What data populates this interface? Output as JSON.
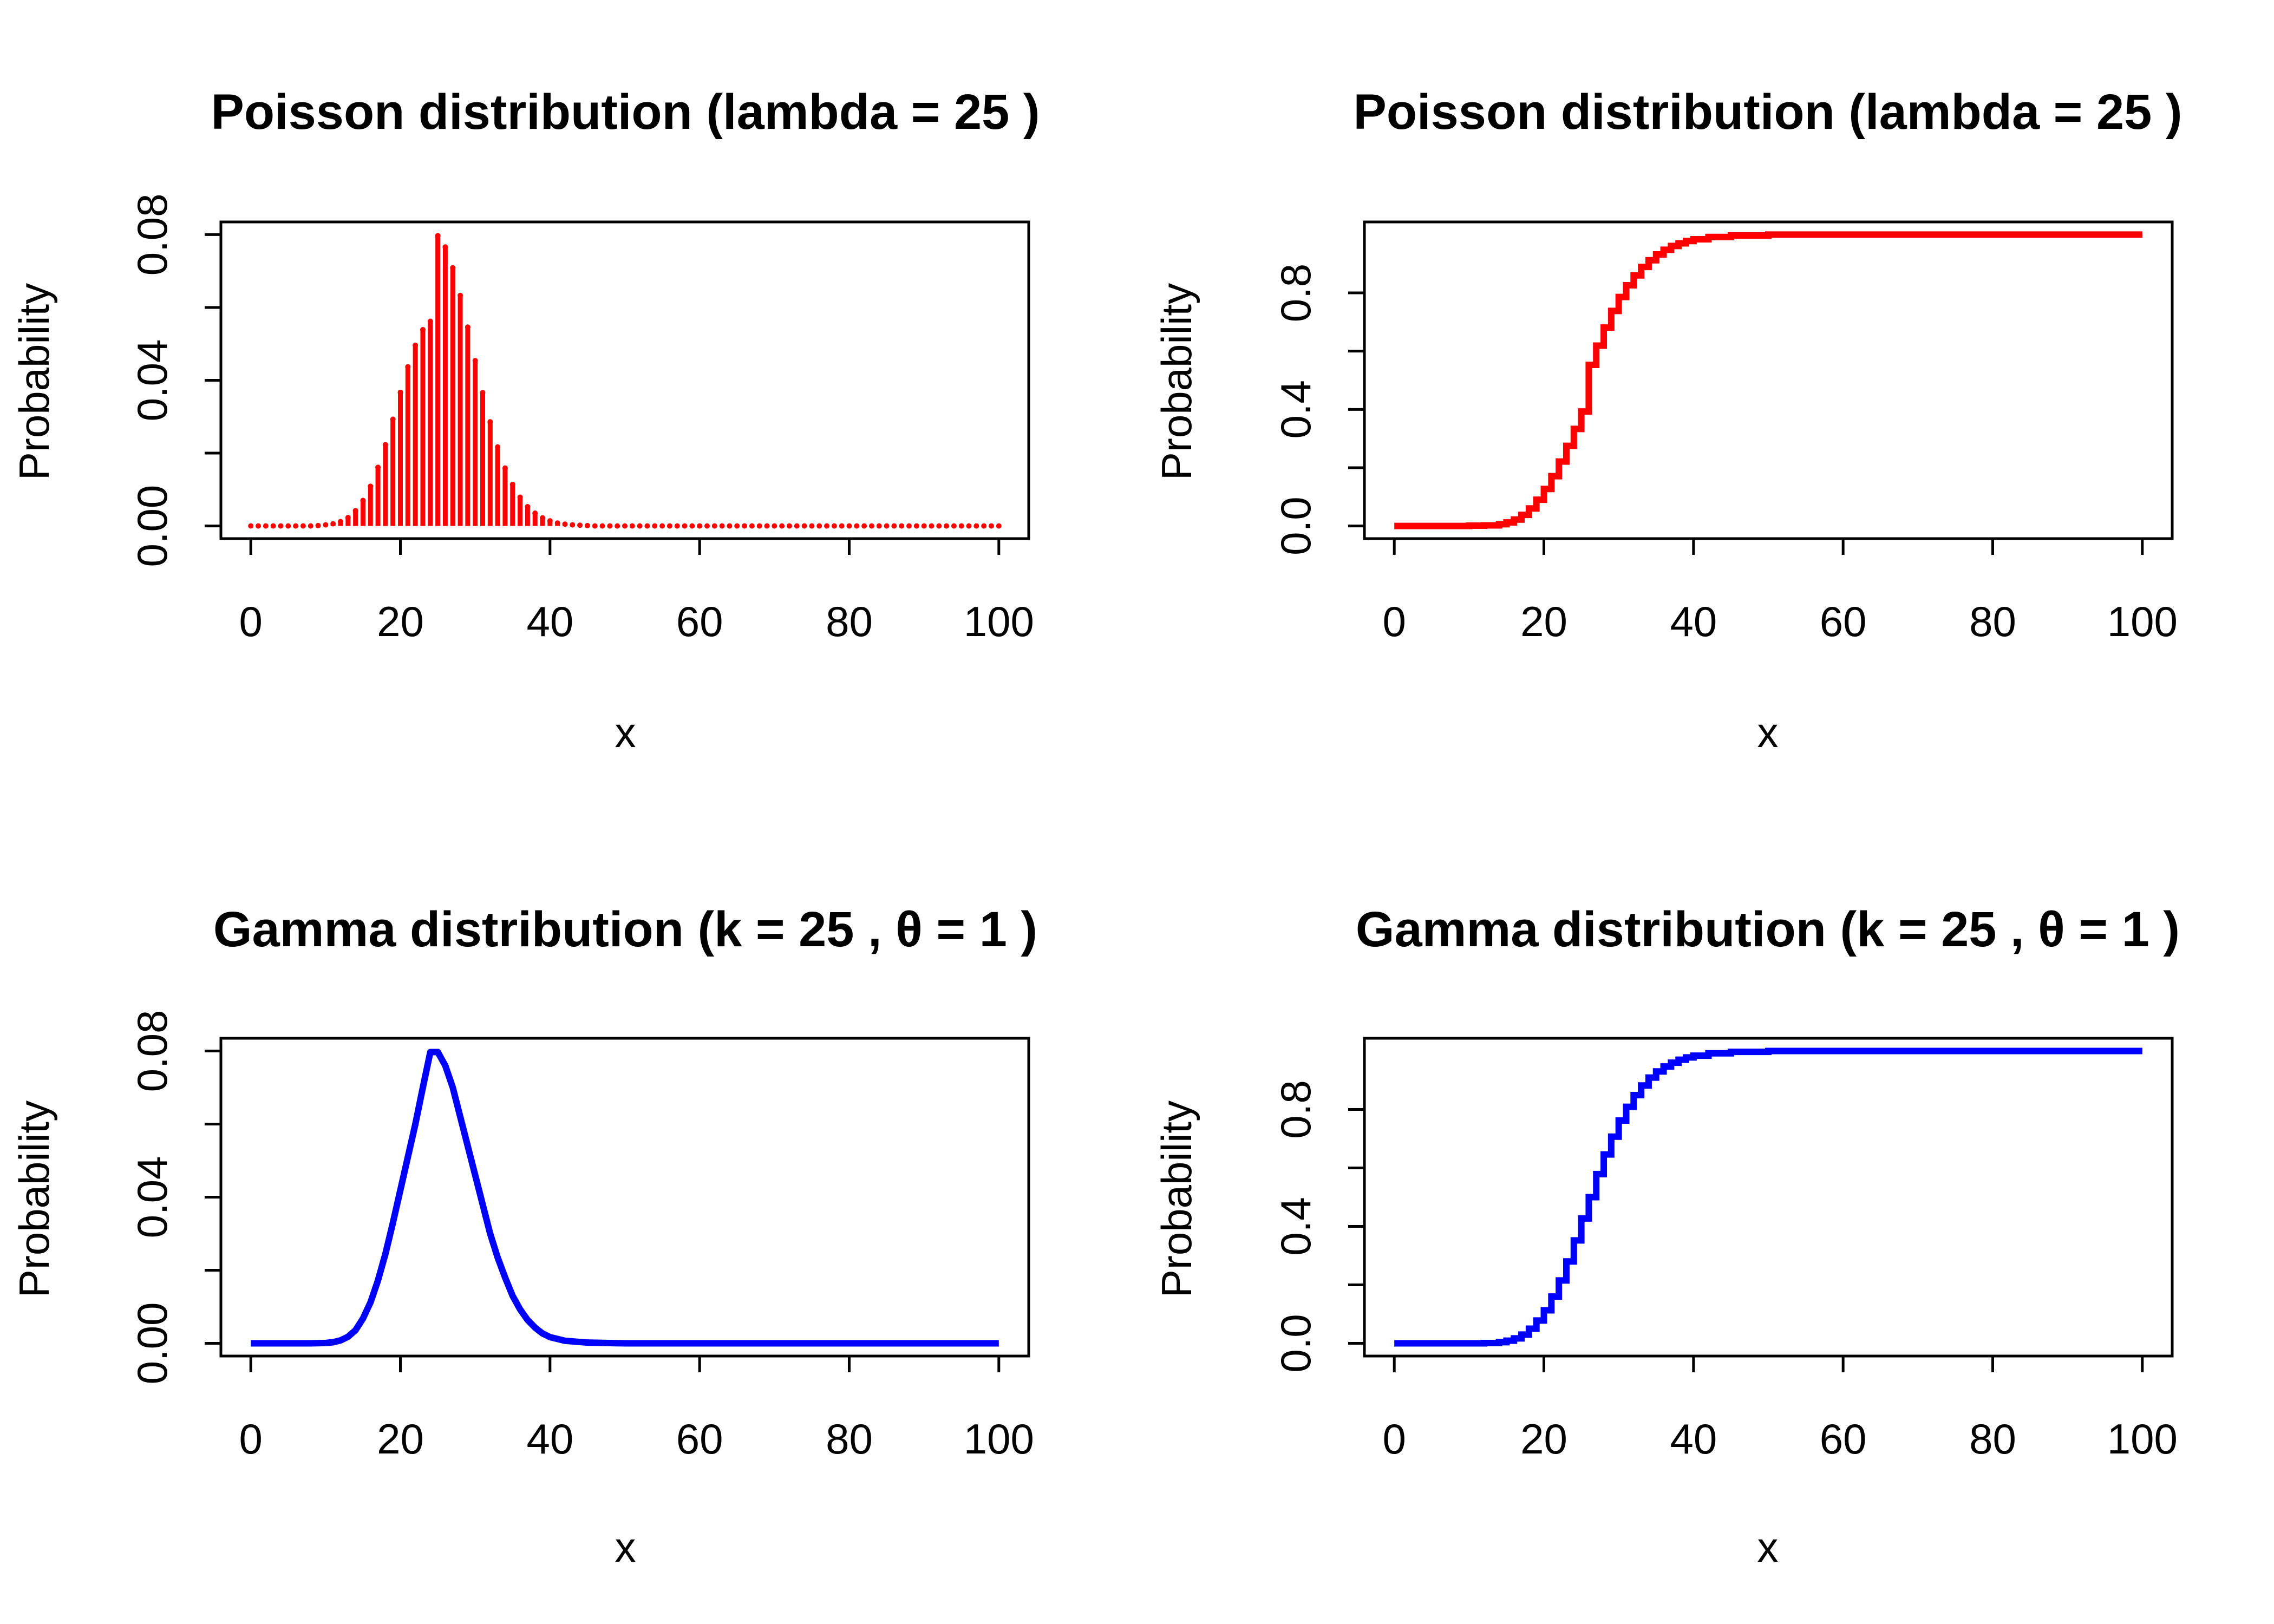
{
  "figure": {
    "panels": [
      {
        "title": "Poisson distribution (lambda = 25 )",
        "xlabel": "x",
        "ylabel": "Probability"
      },
      {
        "title": "Poisson distribution (lambda = 25 )",
        "xlabel": "x",
        "ylabel": "Probability"
      },
      {
        "title": "Gamma distribution (k = 25 , θ = 1 )",
        "xlabel": "x",
        "ylabel": "Probability"
      },
      {
        "title": "Gamma distribution (k = 25 , θ = 1 )",
        "xlabel": "x",
        "ylabel": "Probability"
      }
    ]
  },
  "chart_data": [
    {
      "type": "bar",
      "style": "vertical-lines",
      "color": "#ff0000",
      "title": "Poisson distribution (lambda = 25 )",
      "xlabel": "x",
      "ylabel": "Probability",
      "xlim": [
        0,
        100
      ],
      "ylim": [
        0,
        0.08
      ],
      "xticks": [
        "0",
        "20",
        "40",
        "60",
        "80",
        "100"
      ],
      "yticks": [
        "0.00",
        "0.04",
        "0.08"
      ],
      "x": [
        0,
        1,
        2,
        3,
        4,
        5,
        6,
        7,
        8,
        9,
        10,
        11,
        12,
        13,
        14,
        15,
        16,
        17,
        18,
        19,
        20,
        21,
        22,
        23,
        24,
        25,
        26,
        27,
        28,
        29,
        30,
        31,
        32,
        33,
        34,
        35,
        36,
        37,
        38,
        39,
        40,
        41,
        42,
        43,
        44,
        45,
        46,
        47,
        48,
        49,
        50,
        51,
        52,
        53,
        54,
        55,
        56,
        57,
        58,
        59,
        60,
        61,
        62,
        63,
        64,
        65,
        66,
        67,
        68,
        69,
        70,
        71,
        72,
        73,
        74,
        75,
        76,
        77,
        78,
        79,
        80,
        81,
        82,
        83,
        84,
        85,
        86,
        87,
        88,
        89,
        90,
        91,
        92,
        93,
        94,
        95,
        96,
        97,
        98,
        99,
        100
      ],
      "values": [
        0,
        0,
        0,
        0,
        0,
        0,
        0,
        0,
        0,
        0.0001,
        0.0003,
        0.0006,
        0.0012,
        0.0023,
        0.0042,
        0.007,
        0.0109,
        0.0161,
        0.0223,
        0.0293,
        0.0367,
        0.0437,
        0.0496,
        0.0539,
        0.0562,
        0.0797,
        0.0766,
        0.0709,
        0.0633,
        0.0546,
        0.0454,
        0.0366,
        0.0286,
        0.0217,
        0.0159,
        0.0114,
        0.0079,
        0.0053,
        0.0035,
        0.0022,
        0.0014,
        0.0008,
        0.0005,
        0.0003,
        0.0002,
        0.0001,
        0,
        0,
        0,
        0,
        0,
        0,
        0,
        0,
        0,
        0,
        0,
        0,
        0,
        0,
        0,
        0,
        0,
        0,
        0,
        0,
        0,
        0,
        0,
        0,
        0,
        0,
        0,
        0,
        0,
        0,
        0,
        0,
        0,
        0,
        0,
        0,
        0,
        0,
        0,
        0,
        0,
        0,
        0,
        0,
        0,
        0,
        0,
        0,
        0,
        0,
        0,
        0,
        0,
        0,
        0
      ]
    },
    {
      "type": "line",
      "style": "step",
      "color": "#ff0000",
      "title": "Poisson distribution (lambda = 25 )",
      "xlabel": "x",
      "ylabel": "Probability",
      "xlim": [
        0,
        100
      ],
      "ylim": [
        0,
        1
      ],
      "xticks": [
        "0",
        "20",
        "40",
        "60",
        "80",
        "100"
      ],
      "yticks": [
        "0.0",
        "0.4",
        "0.8"
      ],
      "x": [
        0,
        10,
        12,
        14,
        15,
        16,
        17,
        18,
        19,
        20,
        21,
        22,
        23,
        24,
        25,
        26,
        27,
        28,
        29,
        30,
        31,
        32,
        33,
        34,
        35,
        36,
        37,
        38,
        39,
        40,
        42,
        45,
        50,
        100
      ],
      "values": [
        0,
        0.001,
        0.002,
        0.006,
        0.012,
        0.022,
        0.038,
        0.06,
        0.09,
        0.127,
        0.171,
        0.221,
        0.275,
        0.333,
        0.393,
        0.553,
        0.619,
        0.681,
        0.738,
        0.786,
        0.826,
        0.86,
        0.889,
        0.912,
        0.932,
        0.948,
        0.961,
        0.97,
        0.978,
        0.984,
        0.992,
        0.997,
        1.0,
        1.0
      ]
    },
    {
      "type": "line",
      "style": "smooth",
      "color": "#0000ff",
      "title": "Gamma distribution (k = 25 , θ = 1 )",
      "xlabel": "x",
      "ylabel": "Probability",
      "xlim": [
        0,
        100
      ],
      "ylim": [
        0,
        0.08
      ],
      "xticks": [
        "0",
        "20",
        "40",
        "60",
        "80",
        "100"
      ],
      "yticks": [
        "0.00",
        "0.04",
        "0.08"
      ],
      "x": [
        0,
        8,
        10,
        11,
        12,
        13,
        14,
        15,
        16,
        17,
        18,
        19,
        20,
        21,
        22,
        23,
        24,
        25,
        26,
        27,
        28,
        29,
        30,
        31,
        32,
        33,
        34,
        35,
        36,
        37,
        38,
        39,
        40,
        42,
        45,
        50,
        100
      ],
      "values": [
        0,
        0,
        0.0001,
        0.0003,
        0.0008,
        0.0018,
        0.0036,
        0.0068,
        0.0112,
        0.0172,
        0.0245,
        0.033,
        0.042,
        0.051,
        0.06,
        0.07,
        0.0797,
        0.0797,
        0.076,
        0.07,
        0.062,
        0.054,
        0.046,
        0.038,
        0.03,
        0.0235,
        0.018,
        0.013,
        0.0093,
        0.0064,
        0.0043,
        0.0027,
        0.0017,
        0.0007,
        0.0002,
        0,
        0
      ]
    },
    {
      "type": "line",
      "style": "step",
      "color": "#0000ff",
      "title": "Gamma distribution (k = 25 , θ = 1 )",
      "xlabel": "x",
      "ylabel": "Probability",
      "xlim": [
        0,
        100
      ],
      "ylim": [
        0,
        1
      ],
      "xticks": [
        "0",
        "20",
        "40",
        "60",
        "80",
        "100"
      ],
      "yticks": [
        "0.0",
        "0.4",
        "0.8"
      ],
      "x": [
        0,
        12,
        14,
        15,
        16,
        17,
        18,
        19,
        20,
        21,
        22,
        23,
        24,
        25,
        26,
        27,
        28,
        29,
        30,
        31,
        32,
        33,
        34,
        35,
        36,
        37,
        38,
        39,
        40,
        42,
        45,
        50,
        100
      ],
      "values": [
        0,
        0.001,
        0.004,
        0.009,
        0.017,
        0.03,
        0.05,
        0.078,
        0.113,
        0.16,
        0.215,
        0.28,
        0.352,
        0.427,
        0.5,
        0.579,
        0.646,
        0.707,
        0.762,
        0.809,
        0.849,
        0.882,
        0.909,
        0.93,
        0.947,
        0.96,
        0.97,
        0.978,
        0.984,
        0.992,
        0.997,
        1.0,
        1.0
      ]
    }
  ]
}
